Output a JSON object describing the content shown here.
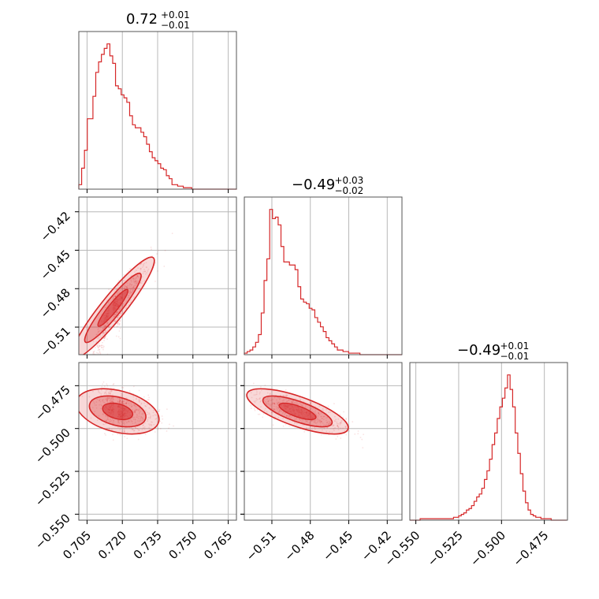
{
  "chart_data": {
    "type": "corner",
    "color": "#d62728",
    "grid": true,
    "parameters": [
      {
        "title": {
          "median": "0.72",
          "plus": "+0.01",
          "minus": "−0.01"
        },
        "range": [
          0.7015,
          0.7685
        ],
        "ticks": [
          0.705,
          0.72,
          0.735,
          0.75,
          0.765
        ],
        "tick_labels": [
          "0.705",
          "0.720",
          "0.735",
          "0.750",
          "0.765"
        ]
      },
      {
        "title": {
          "median": "−0.49",
          "plus": "+0.03",
          "minus": "−0.02"
        },
        "range": [
          -0.5315,
          -0.4085
        ],
        "ticks": [
          -0.51,
          -0.48,
          -0.45,
          -0.42
        ],
        "tick_labels": [
          "−0.51",
          "−0.48",
          "−0.45",
          "−0.42"
        ]
      },
      {
        "title": {
          "median": "−0.49",
          "plus": "+0.01",
          "minus": "−0.01"
        },
        "range": [
          -0.5535,
          -0.4615
        ],
        "ticks": [
          -0.55,
          -0.525,
          -0.5,
          -0.475
        ],
        "tick_labels": [
          "−0.550",
          "−0.525",
          "−0.500",
          "−0.475"
        ]
      }
    ],
    "histograms": [
      {
        "parameter": 0,
        "bin_edges": [
          0.7015,
          0.7027,
          0.7039,
          0.7051,
          0.7063,
          0.7075,
          0.7087,
          0.7099,
          0.7111,
          0.7123,
          0.7135,
          0.7147,
          0.7159,
          0.7171,
          0.7183,
          0.7195,
          0.7207,
          0.7219,
          0.7231,
          0.7243,
          0.7255,
          0.7267,
          0.7279,
          0.7291,
          0.7303,
          0.7315,
          0.7327,
          0.7339,
          0.7351,
          0.7363,
          0.7375,
          0.7387,
          0.7399,
          0.7411,
          0.7423,
          0.7435,
          0.7447,
          0.7459,
          0.7471,
          0.7483,
          0.7495,
          0.7507,
          0.7519,
          0.7531,
          0.7543,
          0.7555,
          0.7567,
          0.7579,
          0.7591,
          0.7603,
          0.7615,
          0.7627,
          0.7639,
          0.7651,
          0.7663,
          0.7675,
          0.7687
        ],
        "counts": [
          3,
          14,
          26,
          47,
          47,
          62,
          78,
          85,
          90,
          94,
          97,
          89,
          84,
          69,
          67,
          63,
          61,
          58,
          49,
          43,
          41,
          41,
          38,
          35,
          30,
          25,
          21,
          19,
          17,
          14,
          13,
          9,
          7,
          3,
          3,
          2,
          2,
          1,
          1,
          1,
          0,
          0,
          0,
          0,
          0,
          0,
          0,
          0,
          0,
          0,
          0,
          0,
          0,
          0,
          0,
          0
        ]
      },
      {
        "parameter": 1,
        "bin_edges": [
          -0.5315,
          -0.5293,
          -0.5271,
          -0.5249,
          -0.5227,
          -0.5205,
          -0.5183,
          -0.5161,
          -0.5139,
          -0.5117,
          -0.5095,
          -0.5073,
          -0.5051,
          -0.5029,
          -0.5007,
          -0.4985,
          -0.4963,
          -0.4941,
          -0.4919,
          -0.4897,
          -0.4875,
          -0.4853,
          -0.4831,
          -0.4809,
          -0.4787,
          -0.4765,
          -0.4743,
          -0.4721,
          -0.4699,
          -0.4677,
          -0.4655,
          -0.4633,
          -0.4611,
          -0.4589,
          -0.4567,
          -0.4545,
          -0.4523,
          -0.4501,
          -0.4479,
          -0.4457,
          -0.4435,
          -0.4413,
          -0.4391,
          -0.4369,
          -0.4347,
          -0.4325,
          -0.4303,
          -0.4281,
          -0.4259,
          -0.4237,
          -0.4215,
          -0.4193,
          -0.4171,
          -0.4149,
          -0.4127,
          -0.4105,
          -0.4085
        ],
        "counts": [
          1,
          2,
          3,
          5,
          8,
          13,
          27,
          48,
          62,
          94,
          88,
          89,
          84,
          70,
          60,
          60,
          58,
          58,
          55,
          44,
          36,
          34,
          33,
          30,
          29,
          24,
          21,
          18,
          15,
          11,
          9,
          7,
          5,
          3,
          3,
          2,
          2,
          1,
          1,
          1,
          1,
          0,
          0,
          0,
          0,
          0,
          0,
          0,
          0,
          0,
          0,
          0,
          0,
          0,
          0,
          0
        ]
      },
      {
        "parameter": 2,
        "bin_edges": [
          -0.5535,
          -0.552,
          -0.5505,
          -0.549,
          -0.5475,
          -0.546,
          -0.5445,
          -0.543,
          -0.5415,
          -0.54,
          -0.5385,
          -0.537,
          -0.5355,
          -0.534,
          -0.5325,
          -0.531,
          -0.5295,
          -0.528,
          -0.5265,
          -0.525,
          -0.5235,
          -0.522,
          -0.5205,
          -0.519,
          -0.5175,
          -0.516,
          -0.5145,
          -0.513,
          -0.5115,
          -0.51,
          -0.5085,
          -0.507,
          -0.5055,
          -0.504,
          -0.5025,
          -0.501,
          -0.4995,
          -0.498,
          -0.4965,
          -0.495,
          -0.4935,
          -0.492,
          -0.4905,
          -0.489,
          -0.4875,
          -0.486,
          -0.4845,
          -0.483,
          -0.4815,
          -0.48,
          -0.4785,
          -0.477,
          -0.4755,
          -0.474,
          -0.4725,
          -0.471,
          -0.4695,
          -0.468,
          -0.4665,
          -0.465,
          -0.4635,
          -0.462
        ],
        "counts": [
          0,
          0,
          0,
          0,
          1,
          1,
          1,
          1,
          1,
          1,
          1,
          1,
          1,
          1,
          1,
          1,
          1,
          2,
          2,
          3,
          4,
          5,
          7,
          8,
          10,
          13,
          16,
          18,
          22,
          28,
          34,
          42,
          52,
          60,
          70,
          78,
          84,
          91,
          100,
          90,
          78,
          60,
          46,
          32,
          20,
          12,
          7,
          4,
          3,
          2,
          2,
          1,
          1,
          1,
          1,
          0,
          0,
          0,
          0,
          0,
          0
        ]
      }
    ],
    "joint": [
      {
        "x_param": 0,
        "y_param": 1,
        "correlation": "positive",
        "center": [
          0.716,
          -0.495
        ],
        "spread": [
          0.008,
          0.018
        ],
        "rho": 0.93,
        "levels": [
          0.5,
          1.0,
          1.5
        ]
      },
      {
        "x_param": 0,
        "y_param": 2,
        "correlation": "weak-negative",
        "center": [
          0.718,
          -0.49
        ],
        "spread": [
          0.008,
          0.006
        ],
        "rho": -0.35,
        "levels": [
          0.5,
          1.0,
          1.5
        ]
      },
      {
        "x_param": 1,
        "y_param": 2,
        "correlation": "negative",
        "center": [
          -0.49,
          -0.49
        ],
        "spread": [
          0.018,
          0.006
        ],
        "rho": -0.72,
        "levels": [
          0.5,
          1.0,
          1.5
        ]
      }
    ]
  }
}
